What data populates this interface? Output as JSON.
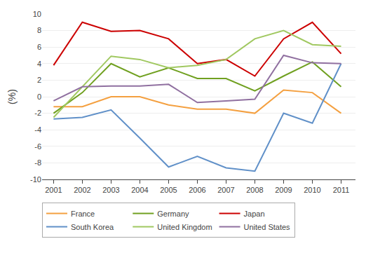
{
  "chart_data": {
    "type": "line",
    "ylabel": "(%)",
    "x": [
      2001,
      2002,
      2003,
      2004,
      2005,
      2006,
      2007,
      2008,
      2009,
      2010,
      2011
    ],
    "series": [
      {
        "name": "France",
        "color": "#F4A040",
        "values": [
          -1.2,
          -1.2,
          0.0,
          0.0,
          -1.0,
          -1.5,
          -1.5,
          -2.0,
          0.8,
          0.5,
          -2.0
        ]
      },
      {
        "name": "Germany",
        "color": "#70A020",
        "values": [
          -2.0,
          0.5,
          4.0,
          2.4,
          3.5,
          2.2,
          2.2,
          0.7,
          2.5,
          4.2,
          1.2
        ]
      },
      {
        "name": "Japan",
        "color": "#CC0000",
        "values": [
          3.8,
          9.0,
          7.9,
          8.0,
          7.0,
          4.0,
          4.5,
          2.5,
          7.0,
          9.0,
          5.2
        ]
      },
      {
        "name": "South Korea",
        "color": "#6090C8",
        "values": [
          -2.7,
          -2.5,
          -1.6,
          -5.0,
          -8.5,
          -7.2,
          -8.6,
          -9.0,
          -2.0,
          -3.2,
          4.0
        ]
      },
      {
        "name": "United Kingdom",
        "color": "#A0C860",
        "values": [
          -2.5,
          1.2,
          4.9,
          4.5,
          3.5,
          3.8,
          4.5,
          7.0,
          8.0,
          6.3,
          6.1
        ]
      },
      {
        "name": "United States",
        "color": "#9070A0",
        "values": [
          -0.5,
          1.2,
          1.3,
          1.3,
          1.5,
          -0.7,
          -0.5,
          -0.3,
          5.0,
          4.1,
          4.0
        ]
      }
    ],
    "xlim": [
      2000.6,
      2011.5
    ],
    "xticks": [
      2001,
      2002,
      2003,
      2004,
      2005,
      2006,
      2007,
      2008,
      2009,
      2010,
      2011
    ],
    "ylim": [
      -10,
      10
    ],
    "yticks": [
      -10,
      -8,
      -6,
      -4,
      -2,
      0,
      2,
      4,
      6,
      8,
      10
    ],
    "grid": true,
    "legend": "bottom"
  }
}
